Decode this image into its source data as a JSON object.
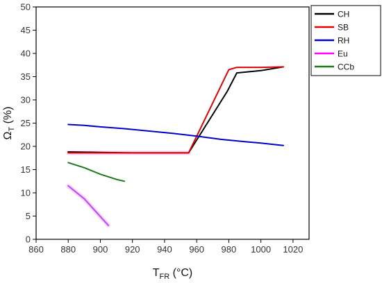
{
  "chart_data": {
    "type": "line",
    "xlabel": {
      "main": "T",
      "sub": "FR",
      "unit": " (°C)"
    },
    "ylabel": {
      "main": "Ω",
      "sub": "T",
      "unit": " (%)"
    },
    "xlim": [
      860,
      1030
    ],
    "ylim": [
      0,
      50
    ],
    "xticks": [
      860,
      880,
      900,
      920,
      940,
      960,
      980,
      1000,
      1020
    ],
    "yticks": [
      0,
      5,
      10,
      15,
      20,
      25,
      30,
      35,
      40,
      45,
      50
    ],
    "grid": false,
    "legend_position": "top-right",
    "series": [
      {
        "name": "CH",
        "color": "#000000",
        "x": [
          880,
          900,
          920,
          940,
          955,
          979,
          985,
          1000,
          1014
        ],
        "y": [
          18.8,
          18.7,
          18.6,
          18.6,
          18.6,
          31.8,
          35.8,
          36.3,
          37.1
        ]
      },
      {
        "name": "SB",
        "color": "#e00000",
        "x": [
          880,
          900,
          920,
          940,
          955,
          980,
          985,
          1000,
          1014
        ],
        "y": [
          18.6,
          18.6,
          18.6,
          18.6,
          18.6,
          36.5,
          37.0,
          37.0,
          37.1
        ]
      },
      {
        "name": "RH",
        "color": "#0000cc",
        "x": [
          880,
          890,
          900,
          915,
          930,
          945,
          960,
          975,
          990,
          1000,
          1014
        ],
        "y": [
          24.7,
          24.5,
          24.2,
          23.8,
          23.3,
          22.8,
          22.2,
          21.5,
          21.0,
          20.7,
          20.2
        ]
      },
      {
        "name": "Eu",
        "color": "#ff00ff",
        "x": [
          880,
          900,
          920,
          940,
          955
        ],
        "y": [
          18.6,
          18.6,
          18.6,
          18.6,
          18.6
        ]
      },
      {
        "name": "CCb",
        "color": "#1a7a1a",
        "x": [
          880,
          890,
          900,
          910,
          915
        ],
        "y": [
          16.5,
          15.4,
          14.0,
          12.9,
          12.5
        ]
      },
      {
        "name": "",
        "color": "#b04dff",
        "x": [
          880,
          890,
          895,
          905
        ],
        "y": [
          11.5,
          8.7,
          6.8,
          3.0
        ]
      }
    ]
  }
}
